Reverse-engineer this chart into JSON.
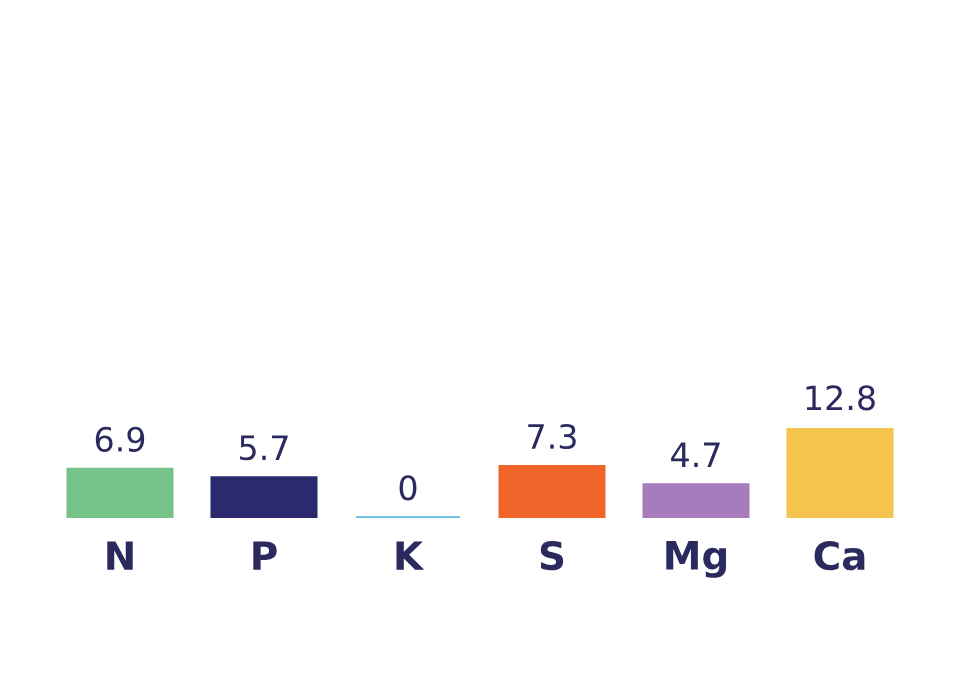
{
  "chart_data": {
    "type": "bar",
    "categories": [
      "N",
      "P",
      "K",
      "S",
      "Mg",
      "Ca"
    ],
    "values": [
      6.9,
      5.7,
      0,
      7.3,
      4.7,
      12.8
    ],
    "colors": [
      "#76c38a",
      "#2b2a6e",
      "#5bb7e5",
      "#f0652a",
      "#a77cbf",
      "#f4c44f"
    ],
    "data_labels": true,
    "grid": false,
    "legend": false
  }
}
